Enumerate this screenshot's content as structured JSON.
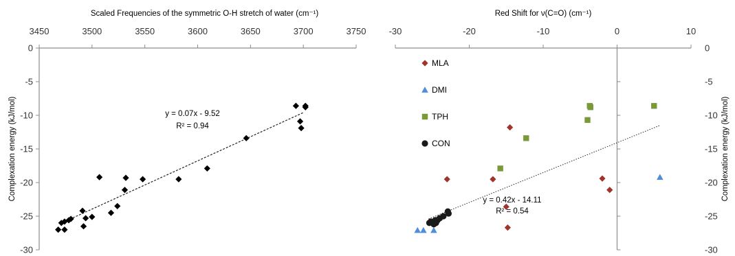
{
  "chart_data": [
    {
      "type": "scatter",
      "title": "",
      "xlabel": "Scaled Frequencies of the symmetric O-H stretch of water (cm⁻¹)",
      "ylabel": "Complexation energy (kJ/mol)",
      "x_axis_position": "top",
      "xlim": [
        3450,
        3750
      ],
      "ylim": [
        -30,
        0
      ],
      "xticks": [
        3450,
        3500,
        3550,
        3600,
        3650,
        3700,
        3750
      ],
      "yticks": [
        0,
        -5,
        -10,
        -15,
        -20,
        -25,
        -30
      ],
      "grid": false,
      "series": [
        {
          "color": "#000000",
          "marker": "diamond",
          "points": [
            [
              3468,
              -27.0
            ],
            [
              3471,
              -26.0
            ],
            [
              3474,
              -27.0
            ],
            [
              3474,
              -25.8
            ],
            [
              3478,
              -25.6
            ],
            [
              3480,
              -25.4
            ],
            [
              3491,
              -24.2
            ],
            [
              3492,
              -26.5
            ],
            [
              3494,
              -25.3
            ],
            [
              3500,
              -25.1
            ],
            [
              3507,
              -19.2
            ],
            [
              3518,
              -24.5
            ],
            [
              3524,
              -23.5
            ],
            [
              3531,
              -21.1
            ],
            [
              3532,
              -19.3
            ],
            [
              3548,
              -19.5
            ],
            [
              3582,
              -19.5
            ],
            [
              3609,
              -17.9
            ],
            [
              3646,
              -13.4
            ],
            [
              3693,
              -8.6
            ],
            [
              3697,
              -10.9
            ],
            [
              3698,
              -11.9
            ],
            [
              3702,
              -8.8
            ],
            [
              3702,
              -8.6
            ]
          ]
        }
      ],
      "trendline": {
        "slope": 0.07,
        "intercept": -9.52,
        "x_range": [
          3470,
          3700
        ],
        "y_range": [
          -26.1,
          -9.6
        ]
      },
      "annotation": {
        "equation": "y = 0.07x - 9.52",
        "r2": "R² = 0.94"
      }
    },
    {
      "type": "scatter",
      "title": "",
      "xlabel": "Red Shift for ν(C=O) (cm⁻¹)",
      "ylabel": "Complexation energy (kJ/mol)",
      "x_axis_position": "top",
      "y_axis_position": "right",
      "xlim": [
        -30,
        10
      ],
      "ylim": [
        -30,
        0
      ],
      "xticks": [
        -30,
        -20,
        -10,
        0,
        10
      ],
      "yticks": [
        0,
        -5,
        -10,
        -15,
        -20,
        -25,
        -30
      ],
      "grid": false,
      "legend_position": "left",
      "series": [
        {
          "name": "MLA",
          "color": "#A0342B",
          "marker": "diamond",
          "points": [
            [
              -14.5,
              -11.8
            ],
            [
              -23.0,
              -19.5
            ],
            [
              -16.8,
              -19.5
            ],
            [
              -2.0,
              -19.4
            ],
            [
              -1.0,
              -21.1
            ],
            [
              -15.0,
              -23.6
            ],
            [
              -14.8,
              -26.7
            ]
          ]
        },
        {
          "name": "DMI",
          "color": "#4F8FD9",
          "marker": "triangle",
          "points": [
            [
              -27.0,
              -27.1
            ],
            [
              -26.2,
              -27.1
            ],
            [
              -24.8,
              -27.1
            ],
            [
              5.8,
              -19.2
            ]
          ]
        },
        {
          "name": "TPH",
          "color": "#7A9A3A",
          "marker": "square",
          "points": [
            [
              -3.7,
              -8.6
            ],
            [
              -3.6,
              -8.8
            ],
            [
              5.0,
              -8.6
            ],
            [
              -4.0,
              -10.7
            ],
            [
              -12.3,
              -13.4
            ],
            [
              -15.8,
              -17.9
            ]
          ]
        },
        {
          "name": "CON",
          "color": "#1A1A1A",
          "marker": "circle",
          "points": [
            [
              -22.9,
              -24.3
            ],
            [
              -22.8,
              -24.6
            ],
            [
              -23.5,
              -25.0
            ],
            [
              -24.0,
              -25.3
            ],
            [
              -24.3,
              -25.6
            ],
            [
              -24.6,
              -25.6
            ],
            [
              -24.9,
              -25.9
            ],
            [
              -25.2,
              -25.8
            ],
            [
              -25.4,
              -26.0
            ],
            [
              -24.8,
              -26.2
            ],
            [
              -24.5,
              -26.0
            ]
          ]
        }
      ],
      "trendline": {
        "slope": 0.42,
        "intercept": -14.11,
        "x_range": [
          -25.5,
          5.8
        ],
        "y_range": [
          -25.4,
          -11.5
        ]
      },
      "annotation": {
        "equation": "y = 0.42x - 14.11",
        "r2": "R² = 0.54"
      }
    }
  ]
}
